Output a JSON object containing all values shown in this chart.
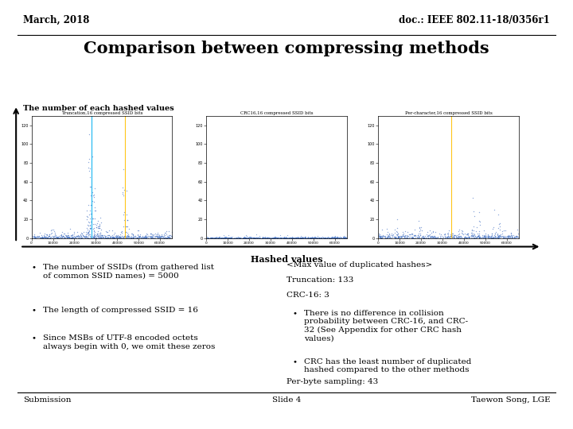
{
  "title_left": "March, 2018",
  "title_right": "doc.: IEEE 802.11-18/0356r1",
  "main_title": "Comparison between compressing methods",
  "subtitle": "The number of each hashed values",
  "chart_titles": [
    "Truncation,16 compressed SSID bits",
    "CRC16,16 compressed SSID bits",
    "Per-character,16 compressed SSID bits"
  ],
  "xlabel": "Hashed values",
  "footer_left": "Submission",
  "footer_center": "Slide 4",
  "footer_right": "Taewon Song, LGE",
  "bullet_left": [
    "The number of SSIDs (from gathered list\nof common SSID names) = 5000",
    "The length of compressed SSID = 16",
    "Since MSBs of UTF-8 encoded octets\nalways begin with 0, we omit these zeros"
  ],
  "right_text_plain": [
    "<Max value of duplicated hashes>",
    "Truncation: 133",
    "CRC-16: 3"
  ],
  "bullet_right": [
    "There is no difference in collision\nprobability between CRC-16, and CRC-\n32 (See Appendix for other CRC hash\nvalues)",
    "CRC has the least number of duplicated\nhashed compared to the other methods"
  ],
  "right_plain_last": "Per-byte sampling: 43",
  "bg_color": "#ffffff",
  "header_line_color": "#000000",
  "footer_line_color": "#000000",
  "chart1_scatter_color": "#4472c4",
  "chart1_line1_color": "#00b0f0",
  "chart1_line2_color": "#ffc000",
  "chart2_scatter_color": "#4472c4",
  "chart3_scatter_color": "#4472c4",
  "chart3_line_color": "#ffc000",
  "yticks": [
    0,
    20,
    40,
    60,
    80,
    100,
    120
  ],
  "xtick_labels": [
    "0",
    "10000",
    "20000",
    "30000",
    "40000",
    "50000",
    "60000"
  ],
  "xticks": [
    0,
    10000,
    20000,
    30000,
    40000,
    50000,
    60000
  ]
}
